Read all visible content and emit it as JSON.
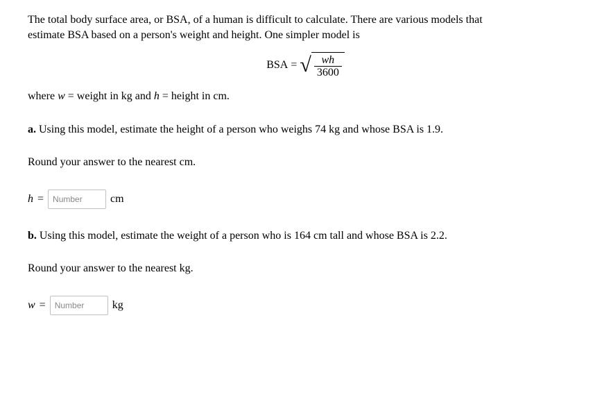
{
  "intro": {
    "line1": "The total body surface area, or BSA, of a human is difficult to calculate. There are various models that",
    "line2": "estimate BSA based on a person's weight and height. One simpler model is"
  },
  "formula": {
    "lhs": "BSA",
    "eq": "=",
    "numerator": "wh",
    "denominator": "3600"
  },
  "where": {
    "prefix": "where ",
    "w": "w",
    "eq1": " = weight in kg and ",
    "h": "h",
    "eq2": " = height in cm."
  },
  "partA": {
    "label": "a.",
    "text": " Using this model, estimate the height of a person who weighs 74 kg and whose BSA is 1.9.",
    "round": "Round your answer to the nearest cm.",
    "var": "h",
    "eq": "=",
    "placeholder": "Number",
    "unit": "cm"
  },
  "partB": {
    "label": "b.",
    "text": "  Using this model, estimate the weight of a person who is 164 cm tall and whose BSA is 2.2.",
    "round": "Round your answer to the nearest kg.",
    "var": "w",
    "eq": "=",
    "placeholder": "Number",
    "unit": "kg"
  },
  "style": {
    "text_color": "#000000",
    "background": "#ffffff",
    "input_border": "#c0c0c0",
    "placeholder_color": "#888888",
    "font_family": "Times New Roman",
    "font_size_pt": 12
  }
}
